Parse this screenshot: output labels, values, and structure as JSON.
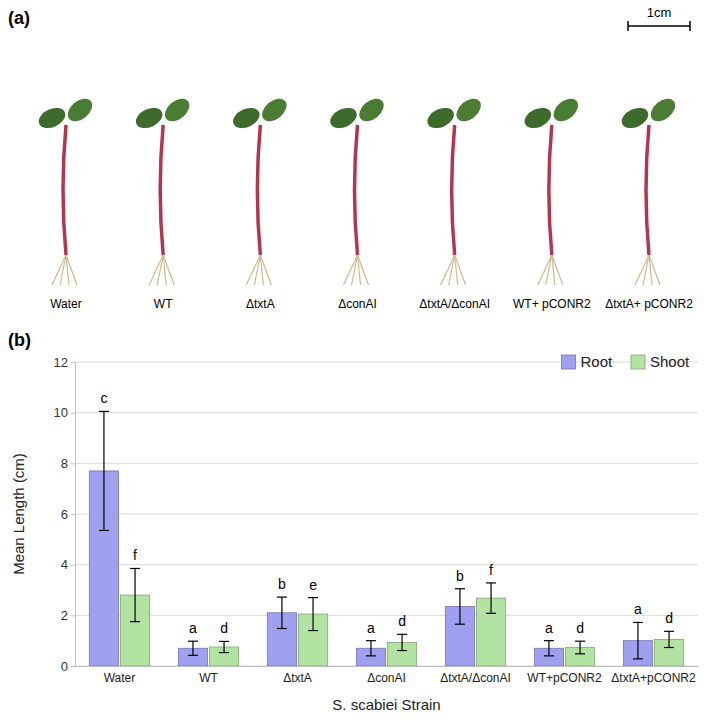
{
  "photo_panel": {
    "panel_label": "(a)",
    "scale_bar": "1cm",
    "labels": [
      "Water",
      "WT",
      "ΔtxtA",
      "ΔconAI",
      "ΔtxtA/ΔconAI",
      "WT+ pCONR2",
      "ΔtxtA+ pCONR2"
    ]
  },
  "chart_data": {
    "type": "bar",
    "panel_label": "(b)",
    "x_label": "S. scabiei Strain",
    "y_label": "Mean Length (cm)",
    "categories": [
      "Water",
      "WT",
      "ΔtxtA",
      "ΔconAI",
      "ΔtxtA/ΔconAI",
      "WT+pCONR2",
      "ΔtxtA+pCONR2"
    ],
    "series": [
      {
        "name": "Root",
        "color": "#a0a0f0",
        "values": [
          7.7,
          0.7,
          2.1,
          0.7,
          2.35,
          0.7,
          1.0
        ],
        "errors": [
          2.35,
          0.28,
          0.62,
          0.3,
          0.7,
          0.3,
          0.72
        ],
        "letters": [
          "c",
          "a",
          "b",
          "a",
          "b",
          "a",
          "a"
        ]
      },
      {
        "name": "Shoot",
        "color": "#b3e3a3",
        "values": [
          2.8,
          0.75,
          2.05,
          0.93,
          2.68,
          0.73,
          1.05
        ],
        "errors": [
          1.05,
          0.22,
          0.65,
          0.32,
          0.6,
          0.25,
          0.32
        ],
        "letters": [
          "f",
          "d",
          "e",
          "d",
          "f",
          "d",
          "d"
        ]
      }
    ],
    "ylim": [
      0,
      12
    ],
    "yticks": [
      0,
      2,
      4,
      6,
      8,
      10,
      12
    ],
    "grid": true,
    "legend": "top-right"
  }
}
